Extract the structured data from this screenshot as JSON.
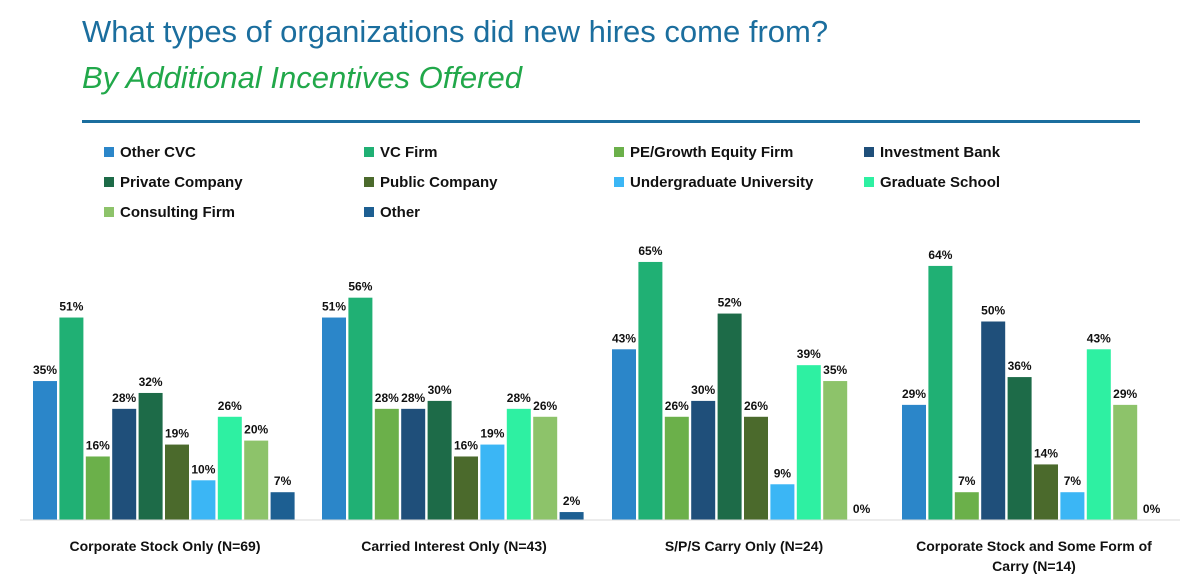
{
  "header": {
    "title": "What types of organizations did new hires come from?",
    "subtitle": "By Additional Incentives Offered"
  },
  "chart_data": {
    "type": "bar",
    "categories": [
      "Corporate Stock Only (N=69)",
      "Carried Interest Only (N=43)",
      "S/P/S Carry Only (N=24)",
      "Corporate Stock and Some Form of Carry (N=14)"
    ],
    "category_lines": [
      [
        "Corporate Stock Only (N=69)"
      ],
      [
        "Carried Interest Only (N=43)"
      ],
      [
        "S/P/S Carry Only (N=24)"
      ],
      [
        "Corporate Stock and Some Form of",
        "Carry (N=14)"
      ]
    ],
    "series": [
      {
        "name": "Other CVC",
        "color": "#2b86c9",
        "values": [
          35,
          51,
          43,
          29
        ]
      },
      {
        "name": "VC Firm",
        "color": "#20b074",
        "values": [
          51,
          56,
          65,
          64
        ]
      },
      {
        "name": "PE/Growth Equity Firm",
        "color": "#6bb04a",
        "values": [
          16,
          28,
          26,
          7
        ]
      },
      {
        "name": "Investment Bank",
        "color": "#1f4f7a",
        "values": [
          28,
          28,
          30,
          50
        ]
      },
      {
        "name": "Private Company",
        "color": "#1d6b48",
        "values": [
          32,
          30,
          52,
          36
        ]
      },
      {
        "name": "Public Company",
        "color": "#4b6a2c",
        "values": [
          19,
          16,
          26,
          14
        ]
      },
      {
        "name": "Undergraduate University",
        "color": "#3bb6f5",
        "values": [
          10,
          19,
          9,
          7
        ]
      },
      {
        "name": "Graduate School",
        "color": "#2ef0a2",
        "values": [
          26,
          28,
          39,
          43
        ]
      },
      {
        "name": "Consulting Firm",
        "color": "#8dc36a",
        "values": [
          20,
          26,
          35,
          29
        ]
      },
      {
        "name": "Other",
        "color": "#1d5f92",
        "values": [
          7,
          2,
          0,
          0
        ]
      }
    ],
    "value_suffix": "%",
    "ylim": [
      0,
      70
    ],
    "legend": "top",
    "grid": false
  }
}
